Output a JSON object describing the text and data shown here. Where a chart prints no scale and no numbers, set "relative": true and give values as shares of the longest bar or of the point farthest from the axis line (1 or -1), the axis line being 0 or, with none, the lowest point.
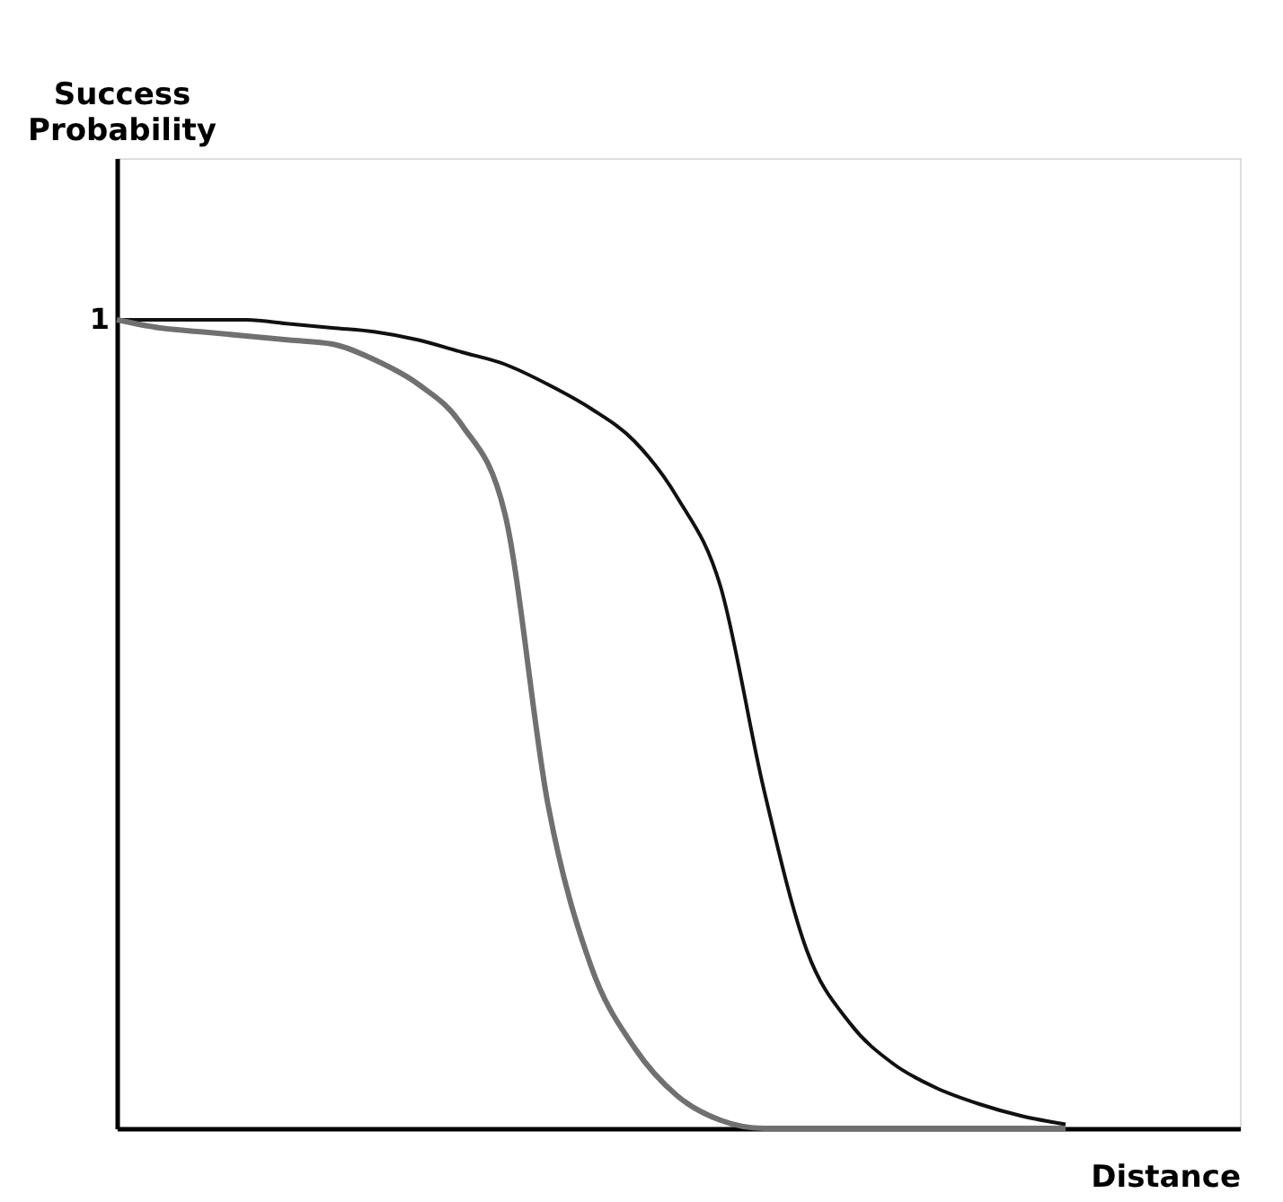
{
  "chart_data": {
    "type": "line",
    "relative": true,
    "xlabel": "Distance",
    "annotations": [
      "1",
      "Success Probability"
    ],
    "categories": [
      null,
      null,
      null,
      null,
      null,
      null,
      null,
      null,
      null,
      null,
      null,
      null,
      null,
      null,
      null,
      null,
      null,
      null,
      null,
      null,
      null,
      null,
      null,
      null,
      null,
      null
    ],
    "series": [
      {
        "color": "#111111",
        "values": [
          1.0,
          1.0,
          1.0,
          1.0,
          0.995,
          0.99,
          0.985,
          0.975,
          0.96,
          0.945,
          0.92,
          0.89,
          0.85,
          0.78,
          0.67,
          0.42,
          0.22,
          0.13,
          0.08,
          0.05,
          0.03,
          0.015,
          0.005,
          null,
          null,
          null
        ]
      },
      {
        "color": "#707070",
        "values": [
          1.0,
          0.99,
          0.985,
          0.98,
          0.975,
          0.97,
          0.95,
          0.92,
          0.87,
          0.76,
          0.4,
          0.2,
          0.1,
          0.04,
          0.01,
          0.0,
          0.0,
          0.0,
          0.0,
          0.0,
          0.0,
          0.0,
          0.0,
          null,
          null,
          null
        ]
      }
    ],
    "marker": "none",
    "line_style": "solid"
  }
}
